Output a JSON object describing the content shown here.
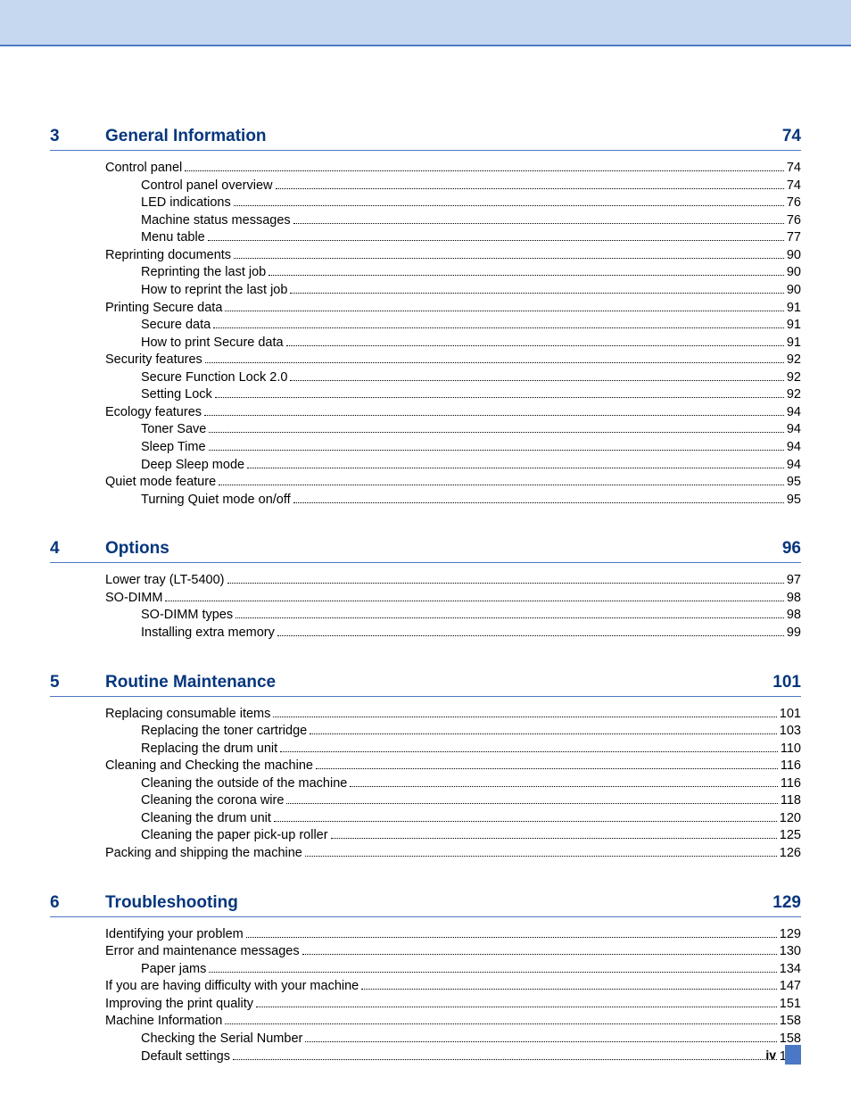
{
  "colors": {
    "header_bg": "#c6d8f0",
    "rule": "#4b78c4",
    "heading": "#05367d",
    "text": "#000000"
  },
  "page_number_roman": "iv",
  "sections": [
    {
      "num": "3",
      "title": "General Information",
      "page": "74",
      "entries": [
        {
          "t": "Control panel",
          "p": "74",
          "lvl": 1
        },
        {
          "t": "Control panel overview",
          "p": "74",
          "lvl": 2
        },
        {
          "t": "LED indications",
          "p": "76",
          "lvl": 2
        },
        {
          "t": "Machine status messages",
          "p": "76",
          "lvl": 2
        },
        {
          "t": "Menu table",
          "p": "77",
          "lvl": 2
        },
        {
          "t": "Reprinting documents",
          "p": "90",
          "lvl": 1
        },
        {
          "t": "Reprinting the last job",
          "p": "90",
          "lvl": 2
        },
        {
          "t": "How to reprint the last job",
          "p": "90",
          "lvl": 2
        },
        {
          "t": "Printing Secure data",
          "p": "91",
          "lvl": 1
        },
        {
          "t": "Secure data",
          "p": "91",
          "lvl": 2
        },
        {
          "t": "How to print Secure data",
          "p": "91",
          "lvl": 2
        },
        {
          "t": "Security features",
          "p": "92",
          "lvl": 1
        },
        {
          "t": "Secure Function Lock 2.0",
          "p": "92",
          "lvl": 2
        },
        {
          "t": "Setting Lock",
          "p": "92",
          "lvl": 2
        },
        {
          "t": "Ecology features",
          "p": "94",
          "lvl": 1
        },
        {
          "t": "Toner Save",
          "p": "94",
          "lvl": 2
        },
        {
          "t": "Sleep Time",
          "p": "94",
          "lvl": 2
        },
        {
          "t": "Deep Sleep mode",
          "p": "94",
          "lvl": 2
        },
        {
          "t": "Quiet mode feature",
          "p": "95",
          "lvl": 1
        },
        {
          "t": "Turning Quiet mode on/off",
          "p": "95",
          "lvl": 2
        }
      ]
    },
    {
      "num": "4",
      "title": "Options",
      "page": "96",
      "entries": [
        {
          "t": "Lower tray (LT-5400)",
          "p": "97",
          "lvl": 1
        },
        {
          "t": "SO-DIMM",
          "p": "98",
          "lvl": 1
        },
        {
          "t": "SO-DIMM types",
          "p": "98",
          "lvl": 2
        },
        {
          "t": "Installing extra memory",
          "p": "99",
          "lvl": 2
        }
      ]
    },
    {
      "num": "5",
      "title": "Routine Maintenance",
      "page": "101",
      "entries": [
        {
          "t": "Replacing consumable items",
          "p": "101",
          "lvl": 1
        },
        {
          "t": "Replacing the toner cartridge",
          "p": "103",
          "lvl": 2
        },
        {
          "t": "Replacing the drum unit",
          "p": "110",
          "lvl": 2
        },
        {
          "t": "Cleaning and Checking the machine",
          "p": "116",
          "lvl": 1
        },
        {
          "t": "Cleaning the outside of the machine",
          "p": "116",
          "lvl": 2
        },
        {
          "t": "Cleaning the corona wire",
          "p": "118",
          "lvl": 2
        },
        {
          "t": "Cleaning the drum unit",
          "p": "120",
          "lvl": 2
        },
        {
          "t": "Cleaning the paper pick-up roller",
          "p": "125",
          "lvl": 2
        },
        {
          "t": "Packing and shipping the machine",
          "p": "126",
          "lvl": 1
        }
      ]
    },
    {
      "num": "6",
      "title": "Troubleshooting",
      "page": "129",
      "entries": [
        {
          "t": "Identifying your problem",
          "p": "129",
          "lvl": 1
        },
        {
          "t": "Error and maintenance messages",
          "p": "130",
          "lvl": 1
        },
        {
          "t": "Paper jams",
          "p": "134",
          "lvl": 2
        },
        {
          "t": "If you are having difficulty with your machine",
          "p": "147",
          "lvl": 1
        },
        {
          "t": "Improving the print quality",
          "p": "151",
          "lvl": 1
        },
        {
          "t": "Machine Information",
          "p": "158",
          "lvl": 1
        },
        {
          "t": "Checking the Serial Number",
          "p": "158",
          "lvl": 2
        },
        {
          "t": "Default settings",
          "p": "158",
          "lvl": 2
        }
      ]
    }
  ]
}
